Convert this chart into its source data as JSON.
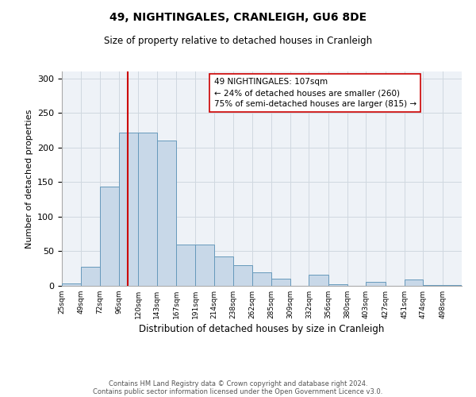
{
  "title": "49, NIGHTINGALES, CRANLEIGH, GU6 8DE",
  "subtitle": "Size of property relative to detached houses in Cranleigh",
  "xlabel": "Distribution of detached houses by size in Cranleigh",
  "ylabel": "Number of detached properties",
  "bin_labels": [
    "25sqm",
    "49sqm",
    "72sqm",
    "96sqm",
    "120sqm",
    "143sqm",
    "167sqm",
    "191sqm",
    "214sqm",
    "238sqm",
    "262sqm",
    "285sqm",
    "309sqm",
    "332sqm",
    "356sqm",
    "380sqm",
    "403sqm",
    "427sqm",
    "451sqm",
    "474sqm",
    "498sqm"
  ],
  "bar_heights": [
    4,
    27,
    143,
    222,
    222,
    210,
    60,
    60,
    43,
    30,
    20,
    10,
    0,
    16,
    2,
    0,
    6,
    0,
    9,
    1,
    1
  ],
  "bar_color": "#c8d8e8",
  "bar_edge_color": "#6699bb",
  "vline_x": 107,
  "vline_color": "#cc0000",
  "annotation_line1": "49 NIGHTINGALES: 107sqm",
  "annotation_line2": "← 24% of detached houses are smaller (260)",
  "annotation_line3": "75% of semi-detached houses are larger (815) →",
  "annotation_box_color": "#ffffff",
  "annotation_box_edge_color": "#cc0000",
  "ylim": [
    0,
    310
  ],
  "yticks": [
    0,
    50,
    100,
    150,
    200,
    250,
    300
  ],
  "grid_color": "#d0d8e0",
  "bg_color": "#eef2f7",
  "footnote1": "Contains HM Land Registry data © Crown copyright and database right 2024.",
  "footnote2": "Contains public sector information licensed under the Open Government Licence v3.0.",
  "bin_edges": [
    25,
    49,
    72,
    96,
    120,
    143,
    167,
    191,
    214,
    238,
    262,
    285,
    309,
    332,
    356,
    380,
    403,
    427,
    451,
    474,
    498,
    522
  ]
}
